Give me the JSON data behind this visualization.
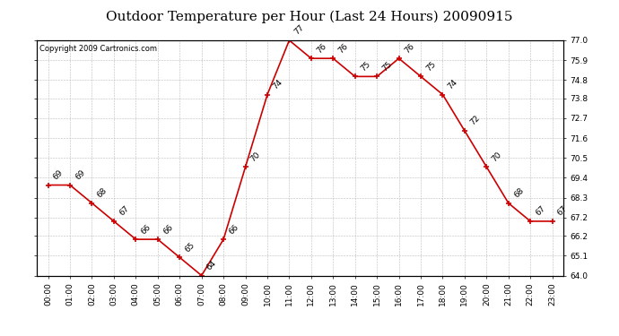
{
  "title": "Outdoor Temperature per Hour (Last 24 Hours) 20090915",
  "copyright": "Copyright 2009 Cartronics.com",
  "hours": [
    "00:00",
    "01:00",
    "02:00",
    "03:00",
    "04:00",
    "05:00",
    "06:00",
    "07:00",
    "08:00",
    "09:00",
    "10:00",
    "11:00",
    "12:00",
    "13:00",
    "14:00",
    "15:00",
    "16:00",
    "17:00",
    "18:00",
    "19:00",
    "20:00",
    "21:00",
    "22:00",
    "23:00"
  ],
  "temps": [
    69,
    69,
    68,
    67,
    66,
    66,
    65,
    64,
    66,
    70,
    74,
    77,
    76,
    76,
    75,
    75,
    76,
    75,
    74,
    72,
    70,
    68,
    67,
    67
  ],
  "ylim_min": 64.0,
  "ylim_max": 77.0,
  "yticks": [
    64.0,
    65.1,
    66.2,
    67.2,
    68.3,
    69.4,
    70.5,
    71.6,
    72.7,
    73.8,
    74.8,
    75.9,
    77.0
  ],
  "line_color": "#cc0000",
  "marker_color": "#cc0000",
  "background_color": "#ffffff",
  "grid_color": "#bbbbbb",
  "title_fontsize": 11,
  "tick_fontsize": 6.5,
  "label_fontsize": 6.5,
  "copyright_fontsize": 6
}
